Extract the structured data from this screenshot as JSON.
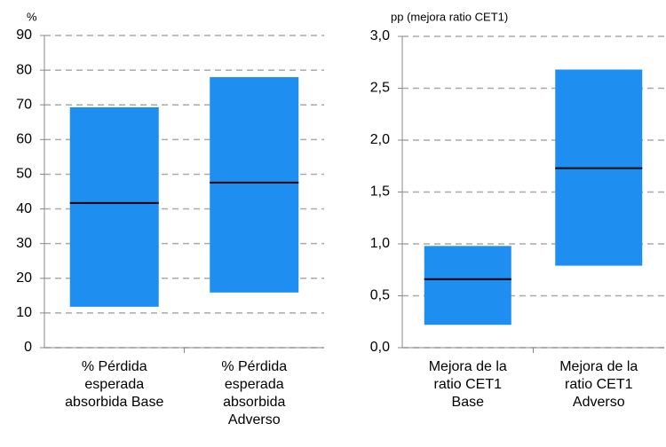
{
  "chart_data": [
    {
      "type": "floating_bar",
      "axis_label": "%",
      "categories": [
        "% Pérdida esperada absorbida Base",
        "% Pérdida esperada absorbida Adverso"
      ],
      "low": [
        11.8,
        15.9
      ],
      "high": [
        69.3,
        78
      ],
      "median": [
        41.7,
        47.6
      ],
      "color": "#1f8ef1",
      "median_color": "#000000",
      "ylim": [
        0,
        90
      ],
      "yticks": [
        0,
        10,
        20,
        30,
        40,
        50,
        60,
        70,
        80,
        90
      ],
      "grid": true
    },
    {
      "type": "floating_bar",
      "axis_label": "pp (mejora ratio CET1)",
      "categories": [
        "Mejora de la ratio CET1 Base",
        "Mejora de la ratio CET1 Adverso"
      ],
      "low": [
        0.22,
        0.79
      ],
      "high": [
        0.98,
        2.68
      ],
      "median": [
        0.66,
        1.73
      ],
      "color": "#1f8ef1",
      "median_color": "#000000",
      "ylim": [
        0,
        3
      ],
      "yticks": [
        {
          "value": 0,
          "label": "0,0"
        },
        {
          "value": 0.5,
          "label": "0,5"
        },
        {
          "value": 1,
          "label": "1,0"
        },
        {
          "value": 1.5,
          "label": "1,5"
        },
        {
          "value": 2,
          "label": "2,0"
        },
        {
          "value": 2.5,
          "label": "2,5"
        },
        {
          "value": 3,
          "label": "3,0"
        }
      ],
      "grid": true
    }
  ]
}
